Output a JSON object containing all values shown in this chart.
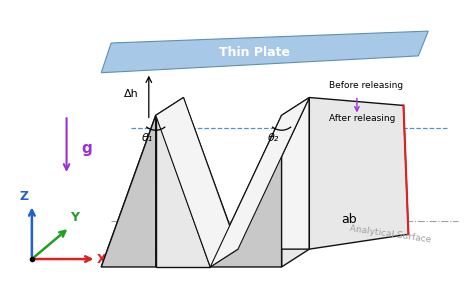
{
  "bg_color": "#ffffff",
  "thin_plate_color": "#a8c8e8",
  "thin_plate_edge_color": "#6090b0",
  "fold_face_dark": "#c8c8c8",
  "fold_face_light": "#e8e8e8",
  "fold_face_white": "#f4f4f4",
  "fold_edge_color": "#111111",
  "gravity_arrow_color": "#9b30d0",
  "axis_x_color": "#e02020",
  "axis_y_color": "#20a020",
  "axis_z_color": "#2060d0",
  "dashed_line_color": "#5090d0",
  "analytical_surface_color": "#a0a0a0",
  "red_line_color": "#e02020",
  "thin_plate_label": "Thin Plate",
  "before_label": "Before releasing",
  "after_label": "After releasing",
  "gravity_label": "g",
  "ab_label": "ab",
  "delta_h_label": "Δh",
  "theta1_label": "θ₁",
  "theta2_label": "θ₂",
  "analytical_label": "Analytical Surface"
}
